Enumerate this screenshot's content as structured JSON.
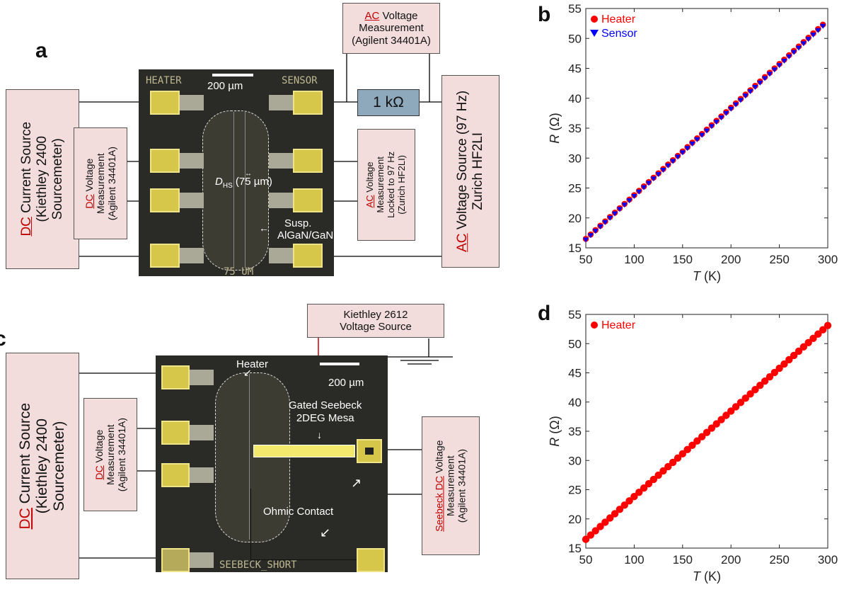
{
  "panel_a": {
    "letter": "a",
    "chip": {
      "heater": "HEATER",
      "sensor": "SENSOR",
      "scale": "200 µm",
      "bottom": "75 UM",
      "dhs": "D",
      "dhs_sub": "HS",
      "gap": "(75 µm)",
      "susp1": "Susp.",
      "susp2": "AlGaN/GaN"
    },
    "resistor": "1 kΩ",
    "ac_meas": {
      "red": "AC",
      "l1": " Voltage",
      "l2": "Measurement",
      "l3": "(Agilent 34401A)"
    },
    "dc_source": {
      "red": "DC",
      "l1": " Current Source",
      "l2": "(Kiethley 2400",
      "l3": "Sourcemeter)"
    },
    "dc_meas": {
      "red": "DC",
      "l1": " Voltage",
      "l2": "Measurement",
      "l3": "(Agilent 34401A)"
    },
    "ac_lock": {
      "red": "AC",
      "l1": " Voltage",
      "l2": "Measurement",
      "l3": "Locked to 97 Hz",
      "l4": "(Zurich HF2LI)"
    },
    "ac_source": {
      "red": "AC",
      "l1": " Voltage Source (97 Hz)",
      "l2": "Zurich HF2LI"
    }
  },
  "panel_c": {
    "letter": "c",
    "chip": {
      "heater": "Heater",
      "scale": "200 µm",
      "mesa1": "Gated Seebeck",
      "mesa2": "2DEG Mesa",
      "ohmic": "Ohmic Contact",
      "bottom": "SEEBECK_SHORT"
    },
    "vsrc": {
      "l1": "Kiethley 2612",
      "l2": "Voltage Source"
    },
    "dc_source": {
      "red": "DC",
      "l1": " Current Source",
      "l2": "(Kiethley 2400",
      "l3": "Sourcemeter)"
    },
    "dc_meas": {
      "red": "DC",
      "l1": " Voltage",
      "l2": "Measurement",
      "l3": "(Agilent 34401A)"
    },
    "seebeck": {
      "red": "Seebeck DC",
      "l1": " Voltage",
      "l2": "Measurement",
      "l3": "(Agilent 34401A)"
    }
  },
  "charts": {
    "colors": {
      "heater": "#ff0000",
      "sensor": "#0000ff"
    },
    "b": {
      "letter": "b",
      "ylabel_var": "R",
      "ylabel_unit": " (Ω)",
      "xlabel_var": "T",
      "xlabel_unit": " (K)"
    },
    "d": {
      "letter": "d",
      "ylabel_var": "R",
      "ylabel_unit": " (Ω)",
      "xlabel_var": "T",
      "xlabel_unit": " (K)"
    }
  },
  "chart_data": [
    {
      "type": "scatter",
      "panel": "b",
      "xlim": [
        50,
        300
      ],
      "ylim": [
        15,
        55
      ],
      "xticks": [
        50,
        100,
        150,
        200,
        250,
        300
      ],
      "yticks": [
        15,
        20,
        25,
        30,
        35,
        40,
        45,
        50,
        55
      ],
      "legend": "top-left",
      "series": [
        {
          "name": "Heater",
          "marker": "circle",
          "x_start": 50,
          "x_end": 297,
          "x_step": 5,
          "y_start": 16.5,
          "y_end": 52.6
        },
        {
          "name": "Sensor",
          "marker": "triangle-down",
          "x_start": 50,
          "x_end": 297,
          "x_step": 5,
          "y_start": 16.3,
          "y_end": 52.3
        }
      ]
    },
    {
      "type": "scatter",
      "panel": "d",
      "xlim": [
        50,
        300
      ],
      "ylim": [
        15,
        55
      ],
      "xticks": [
        50,
        100,
        150,
        200,
        250,
        300
      ],
      "yticks": [
        15,
        20,
        25,
        30,
        35,
        40,
        45,
        50,
        55
      ],
      "legend": "top-left",
      "series": [
        {
          "name": "Heater",
          "marker": "circle",
          "x_start": 50,
          "x_end": 300,
          "x_step": 5,
          "y_start": 16.5,
          "y_end": 53.1
        }
      ]
    }
  ]
}
